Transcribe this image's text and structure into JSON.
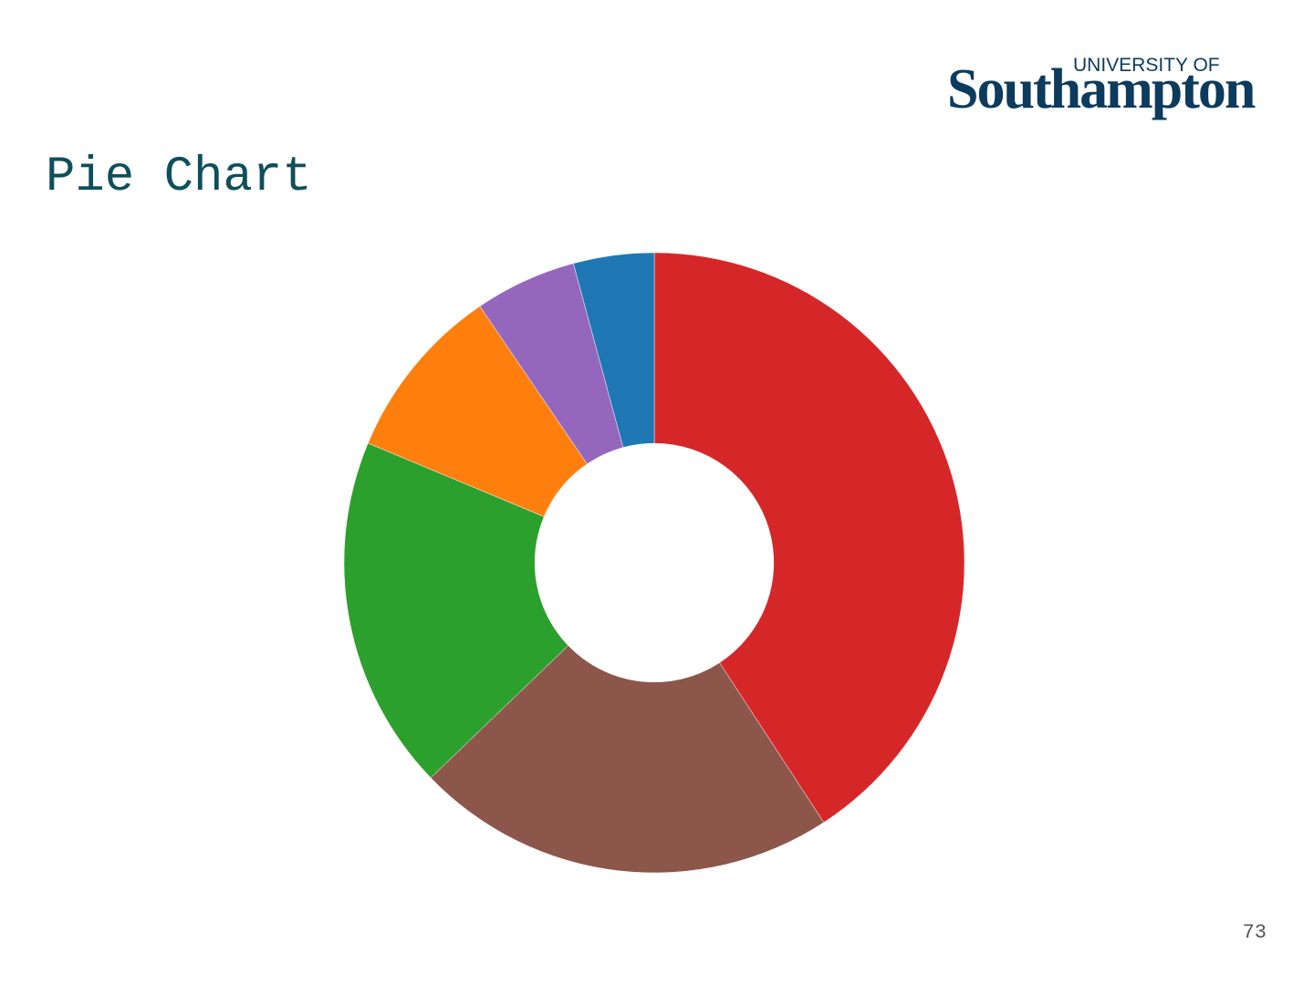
{
  "logo": {
    "line1": "UNIVERSITY OF",
    "line2": "Southampton"
  },
  "page_number": "73",
  "chart_data": {
    "type": "donut",
    "title": "Pie Chart",
    "values": [
      40.8,
      22,
      18.5,
      9.2,
      5.3,
      4.2
    ],
    "colors": [
      "#d62728",
      "#8c564b",
      "#2ca02c",
      "#ff7f0e",
      "#9467bd",
      "#1f77b4"
    ]
  }
}
